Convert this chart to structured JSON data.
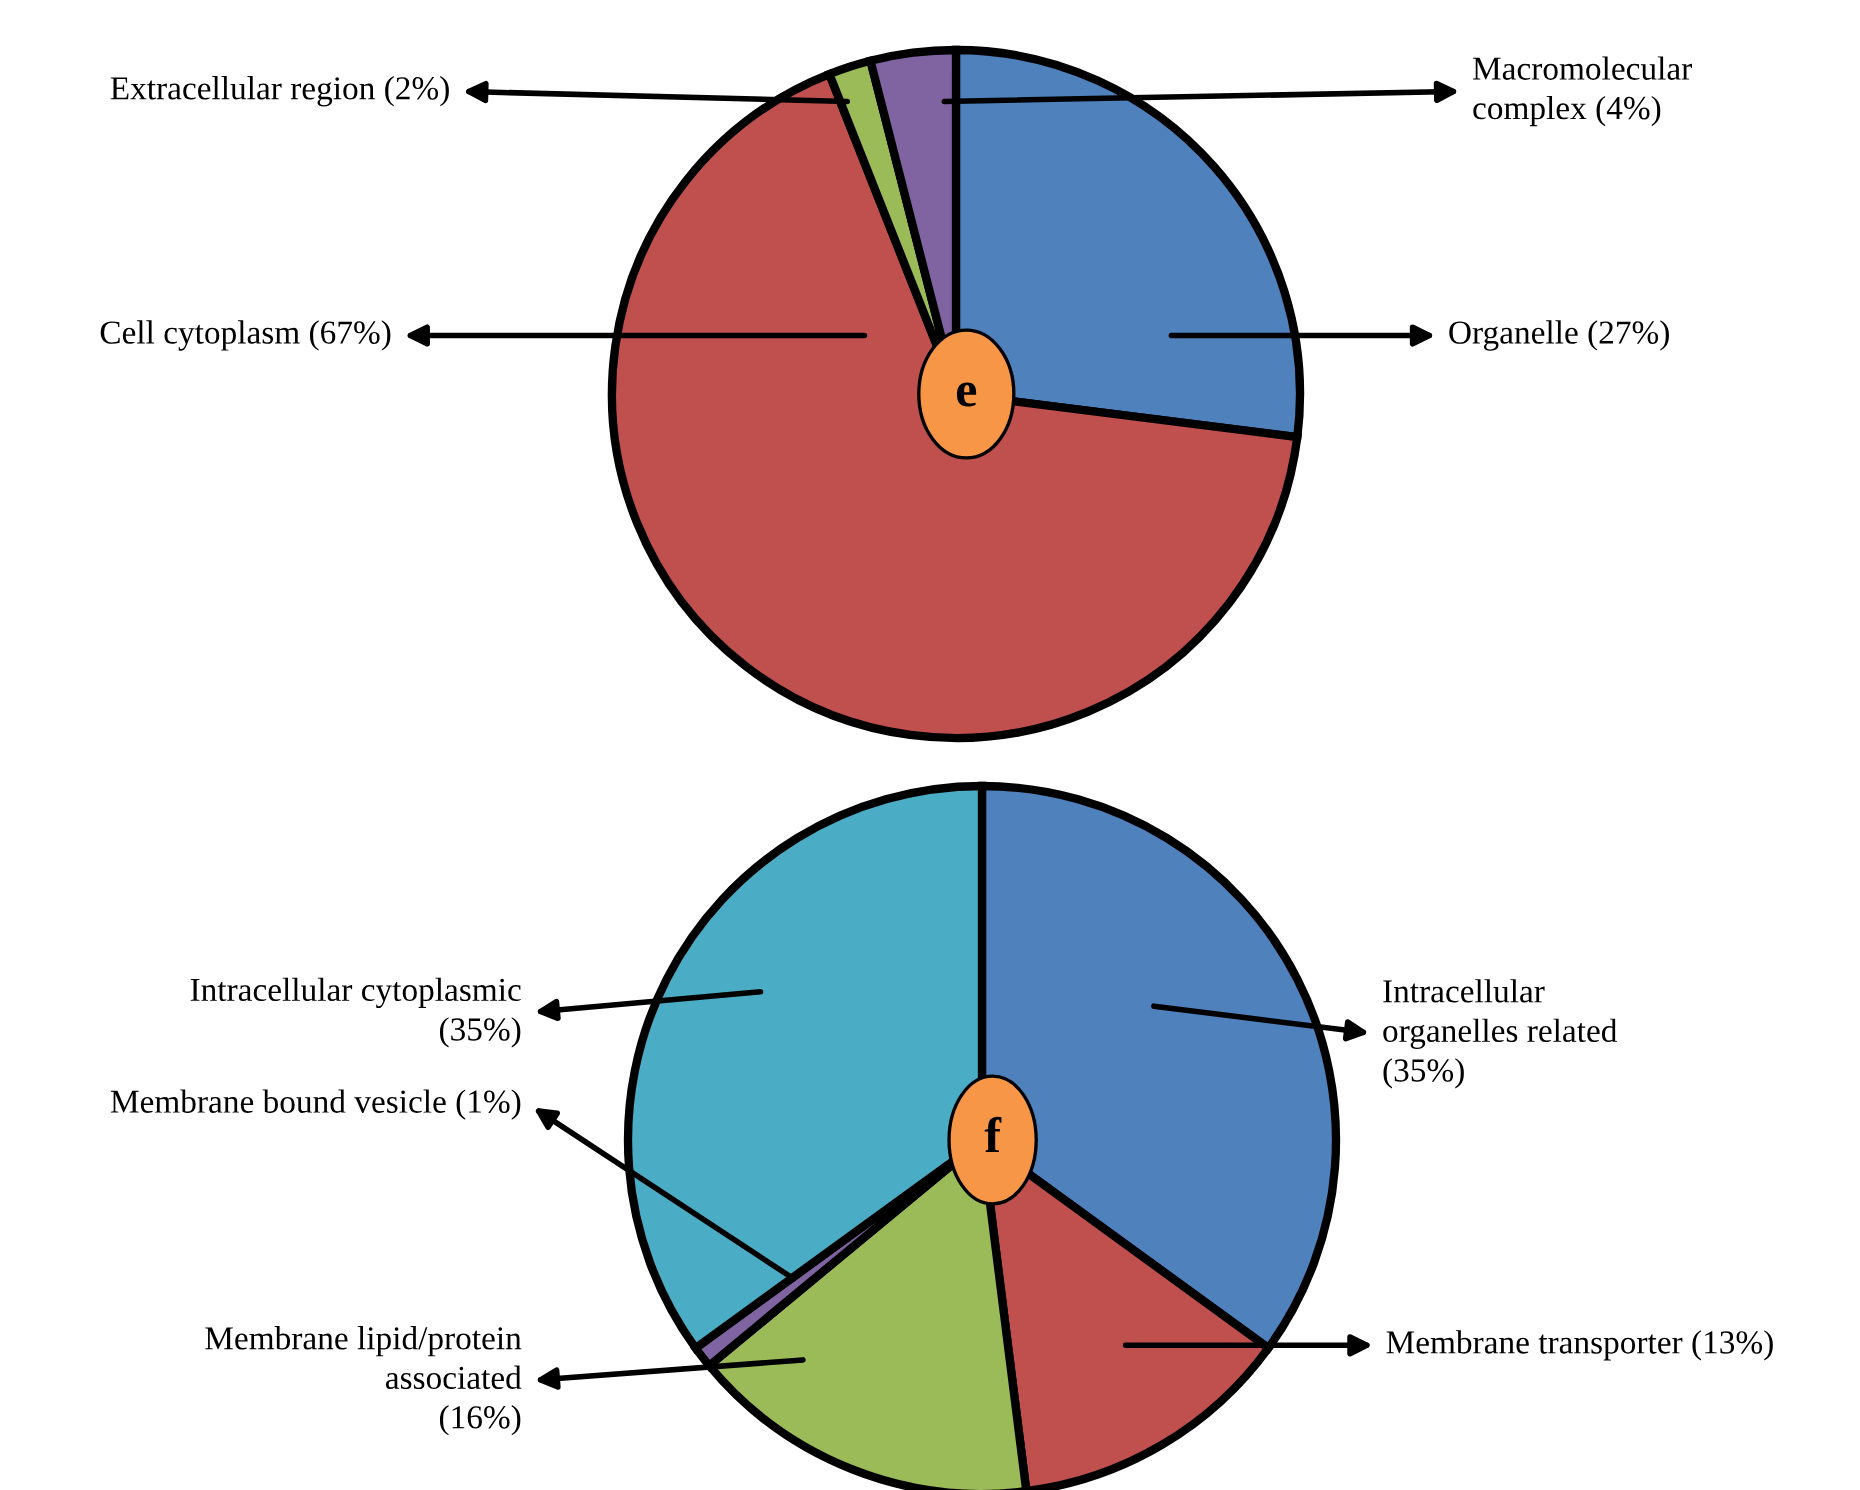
{
  "chart_data": [
    {
      "type": "pie",
      "title": "e",
      "categories": [
        "Organelle",
        "Cell cytoplasm",
        "Extracellular region",
        "Macromolecular\ncomplex"
      ],
      "values": [
        27,
        67,
        2,
        4
      ],
      "value_labels": [
        "(27%)",
        "(67%)",
        "(2%)",
        "(4%)"
      ],
      "colors": [
        "#4f81bd",
        "#c0504d",
        "#9bbb59",
        "#8064a2"
      ]
    },
    {
      "type": "pie",
      "title": "f",
      "categories": [
        "Intracellular\norganelles related",
        "Membrane transporter",
        "Membrane lipid/protein\nassociated",
        "Membrane bound vesicle",
        "Intracellular cytoplasmic"
      ],
      "values": [
        35,
        13,
        16,
        1,
        35
      ],
      "value_labels": [
        "(35%)",
        "(13%)",
        "(16%)",
        "(1%)",
        "(35%)"
      ],
      "colors": [
        "#4f81bd",
        "#c0504d",
        "#9bbb59",
        "#8064a2",
        "#4bacc6"
      ]
    }
  ]
}
